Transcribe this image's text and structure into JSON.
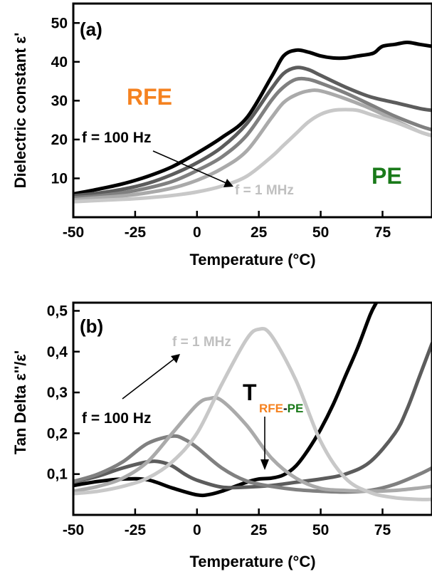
{
  "chart_data": [
    {
      "panel": "(a)",
      "type": "line",
      "xlabel": "Temperature (°C)",
      "ylabel": "Dielectric constant ε'",
      "xlim": [
        -50,
        95
      ],
      "ylim": [
        0,
        55
      ],
      "xticks": [
        -50,
        -25,
        0,
        25,
        50,
        75
      ],
      "yticks": [
        10,
        20,
        30,
        40,
        50
      ],
      "annotations": {
        "rfe": "RFE",
        "pe": "PE",
        "f_low": "f = 100 Hz",
        "f_high": "f = 1 MHz"
      },
      "colors": {
        "rfe": "#f58220",
        "pe": "#1a7a1a"
      },
      "series": [
        {
          "color": "#000000",
          "x": [
            -50,
            -40,
            -30,
            -20,
            -10,
            0,
            10,
            20,
            30,
            35,
            40,
            45,
            50,
            55,
            60,
            65,
            70,
            72,
            75,
            80,
            85,
            90,
            95
          ],
          "y": [
            6,
            7.2,
            8.6,
            10.5,
            13,
            16.5,
            20.5,
            25.5,
            36,
            41.5,
            43,
            42.5,
            41.5,
            41,
            41,
            41.5,
            42,
            42.5,
            44,
            44.5,
            45,
            44.5,
            44
          ]
        },
        {
          "color": "#5c5c5c",
          "x": [
            -50,
            -40,
            -30,
            -20,
            -10,
            0,
            10,
            20,
            30,
            35,
            40,
            45,
            50,
            60,
            70,
            80,
            90,
            95
          ],
          "y": [
            5.5,
            6.2,
            7.2,
            8.7,
            11,
            14,
            18,
            24,
            33,
            37,
            38.5,
            38,
            36.5,
            33.5,
            31,
            29.5,
            28,
            27.5
          ]
        },
        {
          "color": "#808080",
          "x": [
            -50,
            -40,
            -30,
            -20,
            -10,
            0,
            10,
            20,
            30,
            35,
            40,
            45,
            50,
            60,
            70,
            80,
            90,
            95
          ],
          "y": [
            5,
            5.5,
            6.3,
            7.5,
            9.2,
            12,
            15.5,
            21,
            30,
            33.5,
            35.5,
            35.5,
            34.5,
            32,
            29,
            26,
            23.5,
            22.5
          ]
        },
        {
          "color": "#aaaaaa",
          "x": [
            -50,
            -40,
            -30,
            -20,
            -10,
            0,
            10,
            20,
            30,
            35,
            40,
            45,
            50,
            60,
            70,
            80,
            90,
            95
          ],
          "y": [
            4.5,
            5,
            5.5,
            6.3,
            7.5,
            9.5,
            12.5,
            17,
            25.5,
            29.5,
            31.5,
            32.5,
            32.5,
            30.5,
            28,
            25,
            22,
            21
          ]
        },
        {
          "color": "#c8c8c8",
          "x": [
            -50,
            -40,
            -30,
            -20,
            -10,
            0,
            10,
            20,
            30,
            35,
            40,
            45,
            50,
            55,
            60,
            65,
            70,
            80,
            90,
            95
          ],
          "y": [
            4,
            4.3,
            4.6,
            5,
            5.6,
            6.5,
            8,
            10.5,
            15.5,
            18.5,
            21.5,
            24.5,
            26.5,
            27.5,
            27.7,
            27.5,
            26.5,
            24.5,
            22,
            21
          ]
        }
      ]
    },
    {
      "panel": "(b)",
      "type": "line",
      "xlabel": "Temperature (°C)",
      "ylabel": "Tan Delta ε''/ε'",
      "xlim": [
        -50,
        95
      ],
      "ylim": [
        0,
        0.52
      ],
      "xticks": [
        -50,
        -25,
        0,
        25,
        50,
        75
      ],
      "yticks": [
        "0,1",
        "0,2",
        "0,3",
        "0,4",
        "0,5"
      ],
      "annotations": {
        "f_low": "f = 100 Hz",
        "f_high": "f = 1 MHz",
        "t_main": "T",
        "t_sub_a": "RFE",
        "t_sub_dash": "-",
        "t_sub_b": "PE"
      },
      "colors": {
        "rfe": "#f58220",
        "pe": "#1a7a1a"
      },
      "series": [
        {
          "color": "#000000",
          "x": [
            -50,
            -40,
            -30,
            -20,
            -10,
            0,
            5,
            10,
            20,
            25,
            30,
            35,
            40,
            45,
            50,
            55,
            60,
            65,
            70,
            72.5
          ],
          "y": [
            0.072,
            0.082,
            0.088,
            0.086,
            0.066,
            0.049,
            0.05,
            0.058,
            0.08,
            0.088,
            0.09,
            0.098,
            0.12,
            0.16,
            0.21,
            0.27,
            0.34,
            0.41,
            0.49,
            0.52
          ]
        },
        {
          "color": "#5c5c5c",
          "x": [
            -50,
            -40,
            -30,
            -20,
            -15,
            -10,
            -5,
            0,
            10,
            20,
            30,
            40,
            50,
            60,
            70,
            80,
            85,
            90,
            95
          ],
          "y": [
            0.08,
            0.095,
            0.115,
            0.13,
            0.13,
            0.12,
            0.1,
            0.085,
            0.068,
            0.068,
            0.072,
            0.08,
            0.088,
            0.1,
            0.13,
            0.2,
            0.26,
            0.34,
            0.42
          ]
        },
        {
          "color": "#808080",
          "x": [
            -50,
            -40,
            -30,
            -20,
            -10,
            -5,
            0,
            10,
            20,
            30,
            40,
            50,
            60,
            70,
            80,
            90,
            95
          ],
          "y": [
            0.082,
            0.1,
            0.13,
            0.175,
            0.193,
            0.185,
            0.165,
            0.115,
            0.083,
            0.07,
            0.062,
            0.058,
            0.056,
            0.06,
            0.075,
            0.1,
            0.115
          ]
        },
        {
          "color": "#aaaaaa",
          "x": [
            -50,
            -40,
            -30,
            -20,
            -10,
            0,
            5,
            10,
            20,
            30,
            40,
            50,
            60,
            70,
            80,
            90,
            95
          ],
          "y": [
            0.058,
            0.07,
            0.09,
            0.13,
            0.2,
            0.27,
            0.285,
            0.28,
            0.22,
            0.14,
            0.09,
            0.065,
            0.06,
            0.058,
            0.06,
            0.066,
            0.07
          ]
        },
        {
          "color": "#c8c8c8",
          "x": [
            -50,
            -40,
            -30,
            -20,
            -10,
            0,
            10,
            20,
            25,
            30,
            40,
            50,
            60,
            70,
            80,
            90,
            95
          ],
          "y": [
            0.052,
            0.058,
            0.07,
            0.09,
            0.13,
            0.2,
            0.32,
            0.43,
            0.455,
            0.44,
            0.33,
            0.18,
            0.09,
            0.055,
            0.042,
            0.038,
            0.038
          ]
        }
      ]
    }
  ]
}
